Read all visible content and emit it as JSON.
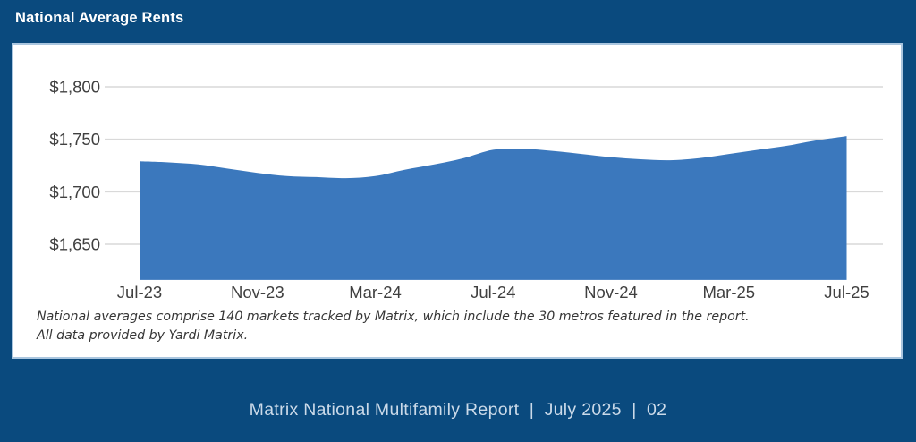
{
  "page": {
    "background": "#0a4a7e"
  },
  "header": {
    "title": "National Average Rents"
  },
  "card": {
    "background": "#ffffff",
    "border_color": "#aac6df"
  },
  "footnote": {
    "line1": "National averages comprise 140 markets tracked by Matrix, which include the 30 metros featured in the report.",
    "line2": "All data provided by Yardi Matrix."
  },
  "footer": {
    "text": "Matrix National Multifamily Report  |  July 2025  |  02",
    "text_color": "#cbdae9"
  },
  "chart_data": {
    "type": "area",
    "title": "National Average Rents",
    "x": [
      "Jul-23",
      "Aug-23",
      "Sep-23",
      "Oct-23",
      "Nov-23",
      "Dec-23",
      "Jan-24",
      "Feb-24",
      "Mar-24",
      "Apr-24",
      "May-24",
      "Jun-24",
      "Jul-24",
      "Aug-24",
      "Sep-24",
      "Oct-24",
      "Nov-24",
      "Dec-24",
      "Jan-25",
      "Feb-25",
      "Mar-25",
      "Apr-25",
      "May-25",
      "Jun-25",
      "Jul-25"
    ],
    "values": [
      1729,
      1728,
      1726,
      1722,
      1718,
      1715,
      1714,
      1713,
      1715,
      1721,
      1726,
      1732,
      1740,
      1741,
      1739,
      1736,
      1733,
      1731,
      1730,
      1732,
      1736,
      1740,
      1744,
      1749,
      1753
    ],
    "x_tick_labels": [
      "Jul-23",
      "Nov-23",
      "Mar-24",
      "Jul-24",
      "Nov-24",
      "Mar-25",
      "Jul-25"
    ],
    "x_tick_every": 4,
    "y_ticks": [
      1800,
      1750,
      1700,
      1650
    ],
    "y_tick_labels": [
      "$1,800",
      "$1,750",
      "$1,700",
      "$1,650"
    ],
    "ylim": [
      1616,
      1800
    ],
    "grid": "horizontal-only",
    "legend": "none",
    "series_color": "#3b78bd",
    "gridline_color": "#d9d9d9",
    "axis_label_color": "#404040"
  }
}
